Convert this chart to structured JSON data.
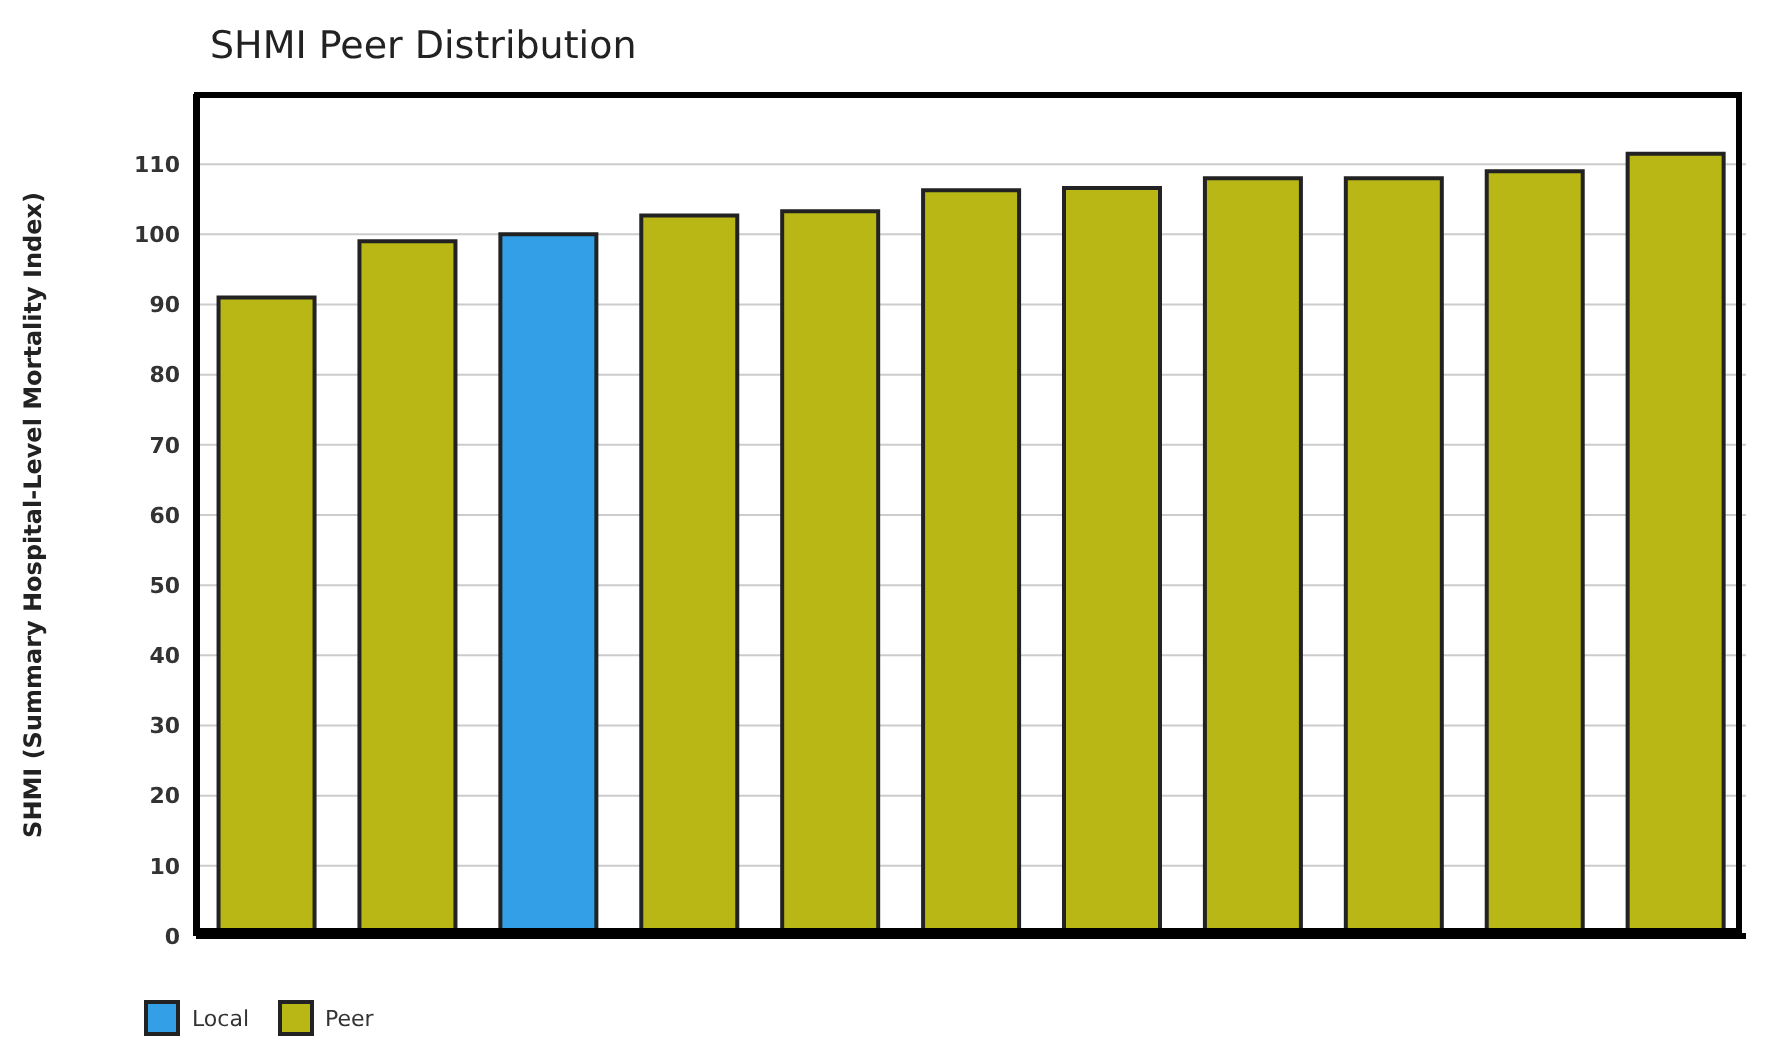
{
  "chart_data": {
    "type": "bar",
    "title": "SHMI Peer Distribution",
    "ylabel": "SHMI (Summary Hospital-Level Mortality Index)",
    "categories": [
      null,
      null,
      null,
      null,
      null,
      null,
      null,
      null,
      null,
      null,
      null
    ],
    "series": [
      {
        "name": "Local",
        "color": "#339fe6",
        "values": [
          null,
          null,
          100,
          null,
          null,
          null,
          null,
          null,
          null,
          null,
          null
        ]
      },
      {
        "name": "Peer",
        "color": "#b8b716",
        "values": [
          91,
          99,
          null,
          102.7,
          103.3,
          106.3,
          106.6,
          108,
          108,
          109,
          111.5
        ]
      }
    ],
    "stacked": true,
    "ylim": [
      0,
      120
    ],
    "yticks": [
      0,
      10,
      20,
      30,
      40,
      50,
      60,
      70,
      80,
      90,
      100,
      110
    ],
    "tick_labels": "y",
    "grid": "y",
    "legend": "bottom"
  }
}
